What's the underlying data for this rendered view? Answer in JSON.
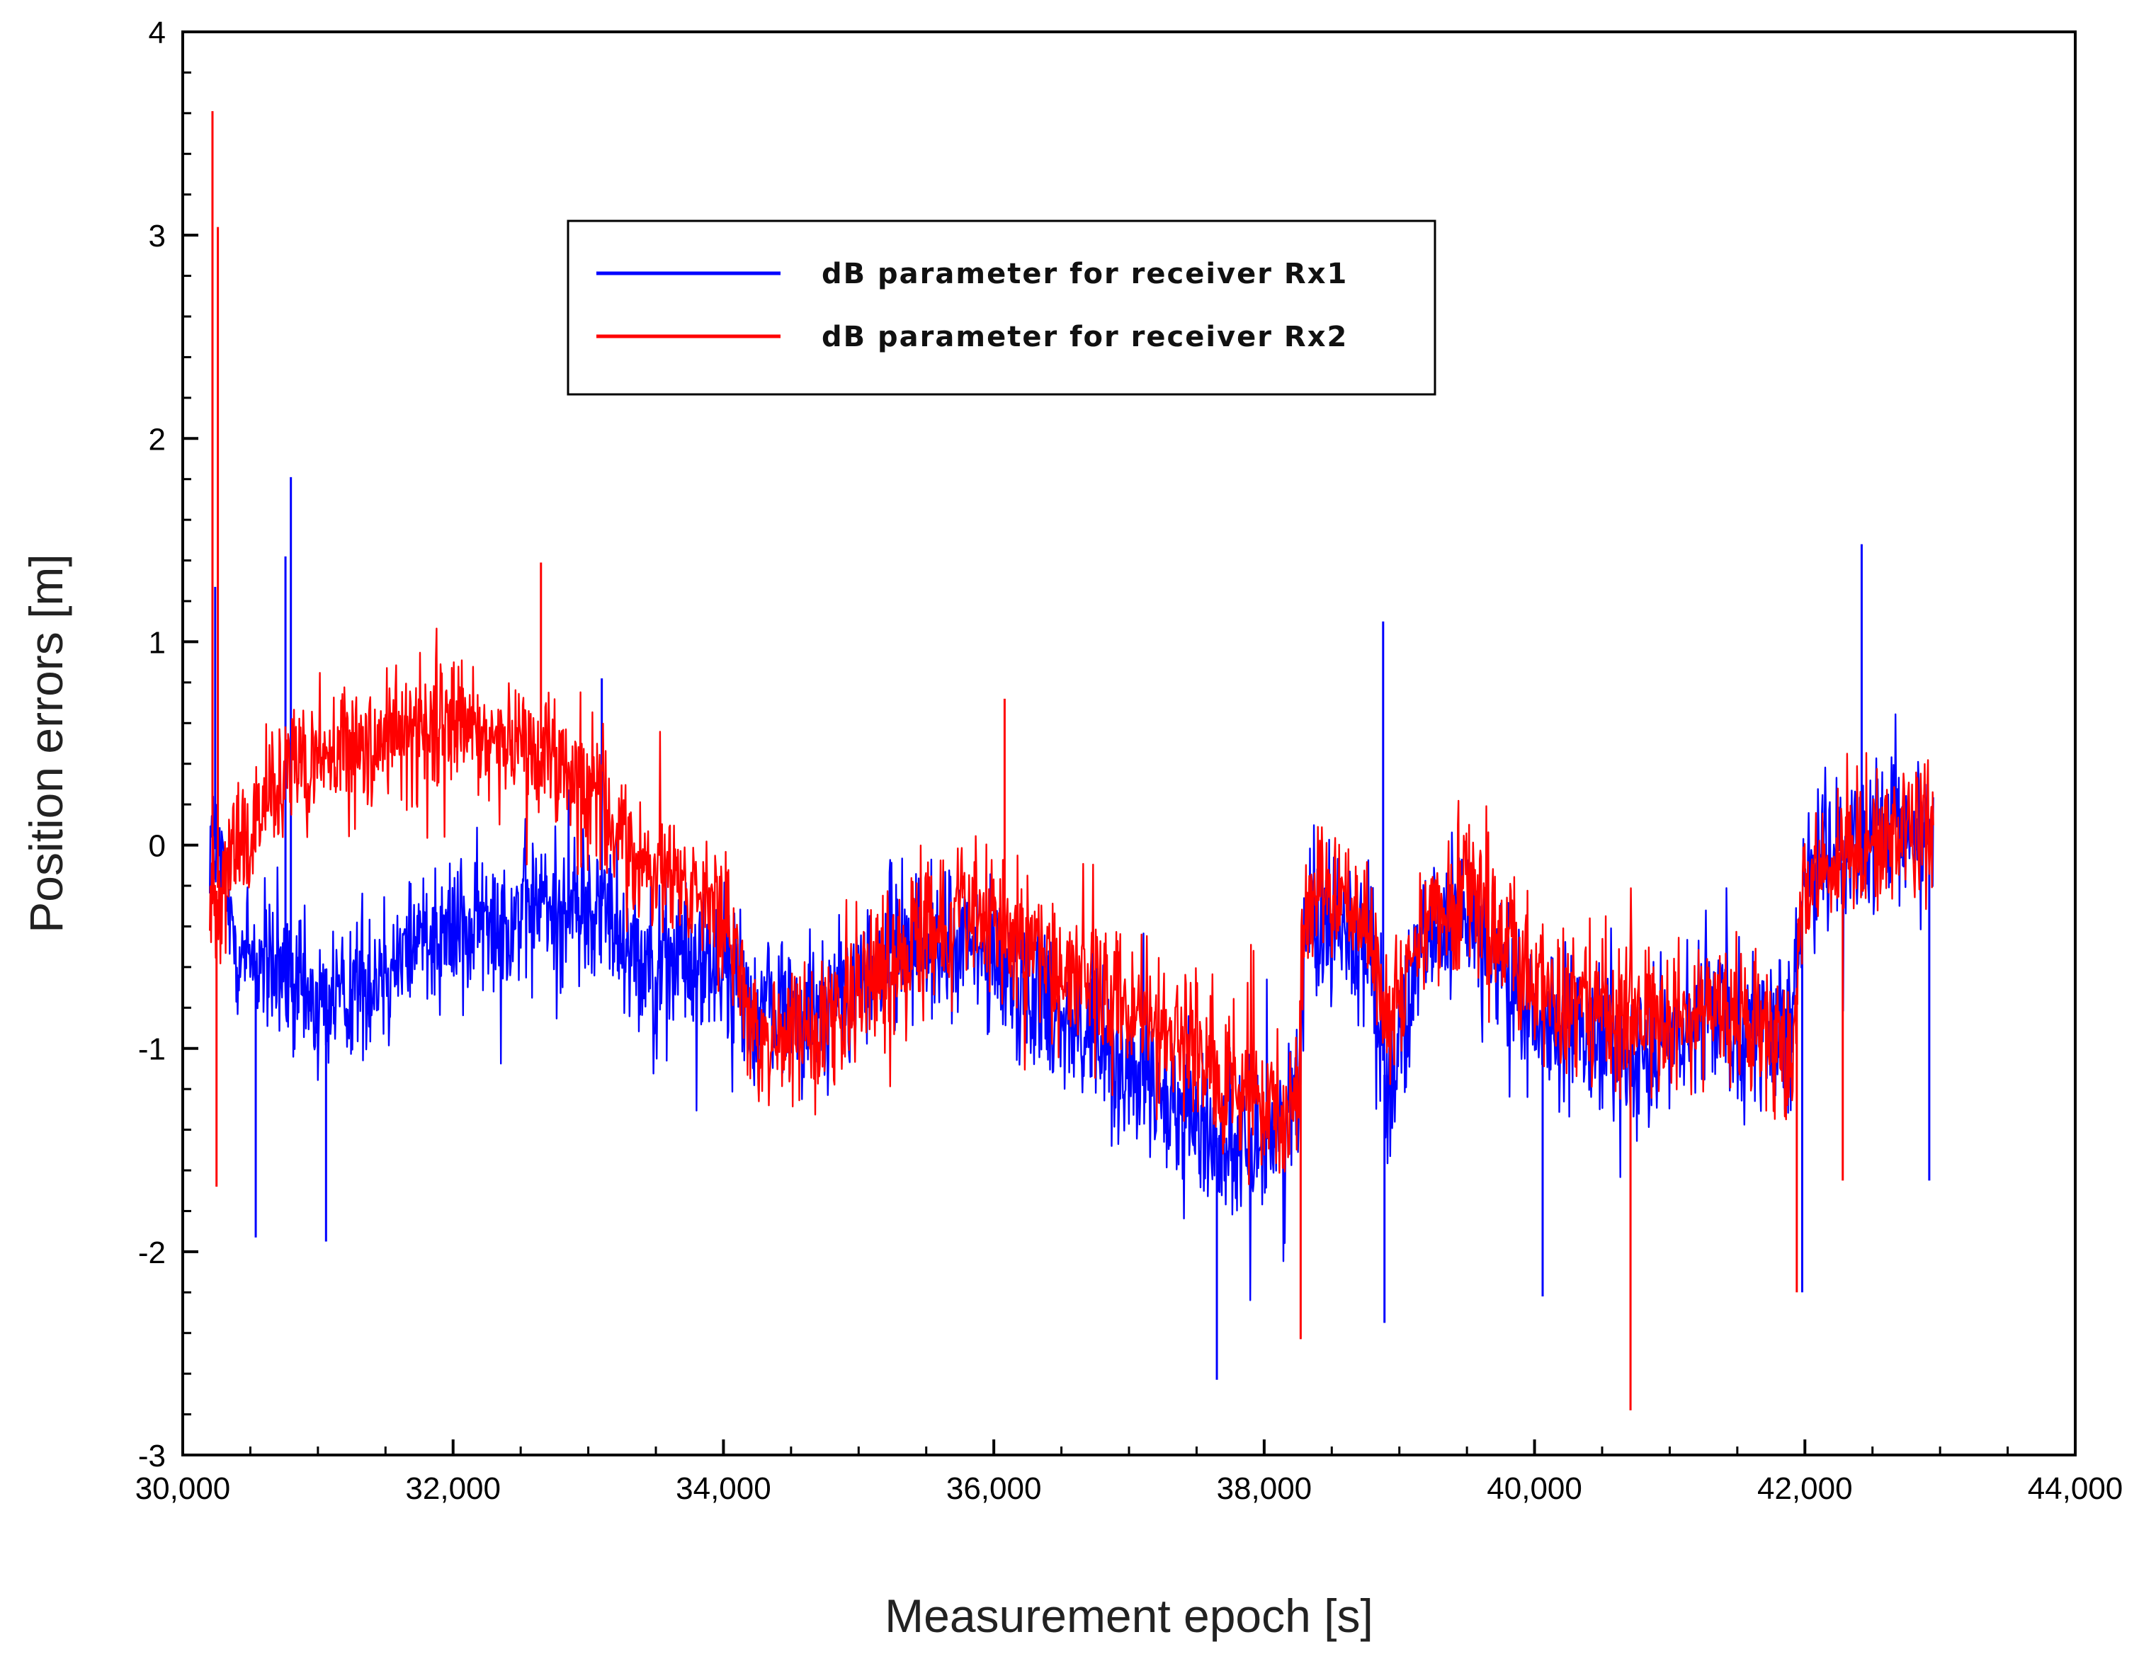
{
  "chart_data": {
    "type": "line",
    "title": "",
    "xlabel": "Measurement epoch [s]",
    "ylabel": "Position errors [m]",
    "xlim": [
      30000,
      44000
    ],
    "ylim": [
      -3,
      4
    ],
    "x_ticks": [
      30000,
      32000,
      34000,
      36000,
      38000,
      40000,
      42000,
      44000
    ],
    "x_tick_labels": [
      "30,000",
      "32,000",
      "34,000",
      "36,000",
      "38,000",
      "40,000",
      "42,000",
      "44,000"
    ],
    "y_ticks": [
      -3,
      -2,
      -1,
      0,
      1,
      2,
      3,
      4
    ],
    "y_tick_labels": [
      "-3",
      "-2",
      "-1",
      "0",
      "1",
      "2",
      "3",
      "4"
    ],
    "grid": false,
    "legend_position": "top-center",
    "series": [
      {
        "name": "dB parameter for receiver Rx1",
        "color": "#0000ff",
        "x_range": [
          30200,
          42950
        ],
        "trend_points": [
          [
            30200,
            0.1
          ],
          [
            30400,
            -0.5
          ],
          [
            31000,
            -0.8
          ],
          [
            31500,
            -0.6
          ],
          [
            31800,
            -0.4
          ],
          [
            32200,
            -0.4
          ],
          [
            32600,
            -0.3
          ],
          [
            33100,
            -0.3
          ],
          [
            33500,
            -0.6
          ],
          [
            34000,
            -0.6
          ],
          [
            34200,
            -0.8
          ],
          [
            34800,
            -0.8
          ],
          [
            35300,
            -0.5
          ],
          [
            35800,
            -0.5
          ],
          [
            36300,
            -0.7
          ],
          [
            36800,
            -1.0
          ],
          [
            37300,
            -1.3
          ],
          [
            37800,
            -1.5
          ],
          [
            38250,
            -1.3
          ],
          [
            38300,
            -0.3
          ],
          [
            38800,
            -0.5
          ],
          [
            38900,
            -1.2
          ],
          [
            39200,
            -0.5
          ],
          [
            39500,
            -0.3
          ],
          [
            39900,
            -0.8
          ],
          [
            40400,
            -1.0
          ],
          [
            40900,
            -1.0
          ],
          [
            41400,
            -0.8
          ],
          [
            41900,
            -1.0
          ],
          [
            42000,
            -0.1
          ],
          [
            42500,
            0.0
          ],
          [
            42950,
            0.1
          ]
        ],
        "noise_amplitude": 0.55,
        "extremes": [
          [
            30240,
            1.27
          ],
          [
            30800,
            1.81
          ],
          [
            30760,
            1.42
          ],
          [
            33100,
            0.82
          ],
          [
            38880,
            1.1
          ],
          [
            42420,
            1.48
          ],
          [
            37650,
            -2.63
          ],
          [
            40060,
            -2.22
          ],
          [
            38890,
            -2.35
          ],
          [
            42920,
            -1.65
          ],
          [
            30540,
            -1.93
          ],
          [
            31060,
            -1.95
          ],
          [
            41980,
            -2.2
          ]
        ]
      },
      {
        "name": "dB parameter for receiver Rx2",
        "color": "#ff0000",
        "x_range": [
          30200,
          42950
        ],
        "trend_points": [
          [
            30200,
            -0.3
          ],
          [
            30400,
            0.0
          ],
          [
            30900,
            0.4
          ],
          [
            31400,
            0.5
          ],
          [
            32000,
            0.6
          ],
          [
            32600,
            0.5
          ],
          [
            33000,
            0.3
          ],
          [
            33400,
            -0.1
          ],
          [
            34000,
            -0.3
          ],
          [
            34200,
            -1.0
          ],
          [
            34700,
            -0.9
          ],
          [
            35200,
            -0.6
          ],
          [
            35800,
            -0.3
          ],
          [
            36400,
            -0.6
          ],
          [
            37000,
            -0.8
          ],
          [
            37500,
            -1.0
          ],
          [
            38000,
            -1.3
          ],
          [
            38250,
            -1.3
          ],
          [
            38300,
            -0.2
          ],
          [
            38800,
            -0.4
          ],
          [
            38900,
            -0.9
          ],
          [
            39200,
            -0.4
          ],
          [
            39500,
            -0.2
          ],
          [
            39900,
            -0.6
          ],
          [
            40500,
            -0.8
          ],
          [
            41000,
            -0.9
          ],
          [
            41500,
            -0.8
          ],
          [
            41900,
            -1.1
          ],
          [
            42000,
            -0.2
          ],
          [
            42500,
            0.0
          ],
          [
            42950,
            0.1
          ]
        ],
        "noise_amplitude": 0.5,
        "extremes": [
          [
            30220,
            3.61
          ],
          [
            30260,
            3.04
          ],
          [
            32650,
            1.39
          ],
          [
            36080,
            0.72
          ],
          [
            40710,
            -2.78
          ],
          [
            38270,
            -2.43
          ],
          [
            30250,
            -1.68
          ],
          [
            42280,
            -1.65
          ],
          [
            41940,
            -2.2
          ]
        ]
      }
    ]
  }
}
